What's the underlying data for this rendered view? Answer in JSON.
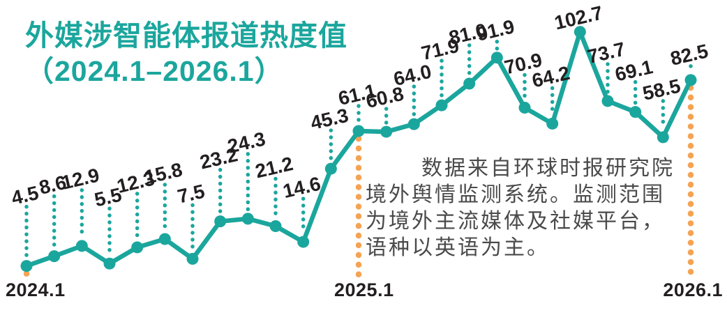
{
  "title": {
    "line1": "外媒涉智能体报道热度值",
    "line2": "（2024.1–2026.1）"
  },
  "annotation": {
    "lines": [
      "数据来自环球时报研究院",
      "境外舆情监测系统。监测范围",
      "为境外主流媒体及社媒平台，",
      "语种以英语为主。"
    ]
  },
  "x_axis": {
    "labels": [
      "2024.1",
      "2025.1",
      "2026.1"
    ]
  },
  "colors": {
    "teal": "#1BA69D",
    "orange": "#F5A353",
    "label": "#231F20",
    "annotation_text": "#4A4A4A"
  },
  "chart_data": {
    "type": "line",
    "title": "外媒涉智能体报道热度值（2024.1–2026.1）",
    "x_start": "2024.1",
    "x_end": "2026.1",
    "x_interval": "monthly",
    "n_points": 25,
    "values": [
      4.5,
      8.6,
      12.9,
      5.5,
      12.3,
      15.8,
      7.5,
      23.2,
      24.3,
      21.2,
      14.6,
      45.3,
      61.1,
      60.8,
      64.0,
      71.9,
      81.0,
      91.9,
      70.9,
      64.2,
      102.7,
      73.7,
      69.1,
      58.5,
      82.5
    ],
    "visible_x_ticks": [
      {
        "index": 0,
        "label": "2024.1"
      },
      {
        "index": 12,
        "label": "2025.1"
      },
      {
        "index": 24,
        "label": "2026.1"
      }
    ],
    "label_offsets": [
      102,
      103,
      97,
      96,
      94,
      95,
      94,
      91,
      110,
      85,
      79,
      72,
      53,
      50,
      71,
      81,
      72,
      40,
      64,
      68,
      21,
      70,
      60,
      69,
      37
    ],
    "ylim": [
      0,
      110
    ],
    "grid": false,
    "legend": false,
    "point_labels_shown": true
  }
}
